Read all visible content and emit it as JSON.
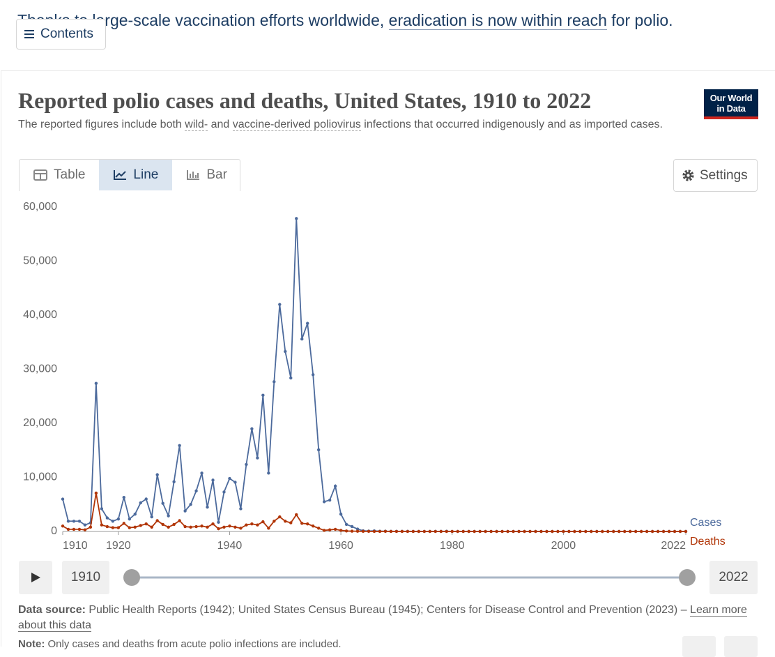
{
  "page": {
    "intro": {
      "text_before": "Thanks to large-scale vaccination efforts worldwide, ",
      "link": "eradication is now within reach",
      "text_after": " for polio."
    },
    "contents_button": "Contents",
    "logo": [
      "Our World",
      "in Data"
    ],
    "tabs": [
      "Table",
      "Line",
      "Bar"
    ],
    "settings_button": "Settings",
    "timeline": {
      "start": "1910",
      "end": "2022"
    },
    "source": {
      "label": "Data source:",
      "text": " Public Health Reports (1942); United States Census Bureau (1945); Centers for Disease Control and Prevention (2023) – ",
      "link": "Learn more about this data"
    },
    "note": {
      "label": "Note:",
      "text": " Only cases and deaths from acute polio infections are included."
    }
  },
  "chart_data": {
    "type": "line",
    "title": "Reported polio cases and deaths, United States, 1910 to 2022",
    "subtitle": [
      "The reported figures include both ",
      "wild-",
      " and ",
      "vaccine-derived poliovirus",
      " infections that occurred indigenously and as imported cases."
    ],
    "x": [
      1910,
      1911,
      1912,
      1913,
      1914,
      1915,
      1916,
      1917,
      1918,
      1919,
      1920,
      1921,
      1922,
      1923,
      1924,
      1925,
      1926,
      1927,
      1928,
      1929,
      1930,
      1931,
      1932,
      1933,
      1934,
      1935,
      1936,
      1937,
      1938,
      1939,
      1940,
      1941,
      1942,
      1943,
      1944,
      1945,
      1946,
      1947,
      1948,
      1949,
      1950,
      1951,
      1952,
      1953,
      1954,
      1955,
      1956,
      1957,
      1958,
      1959,
      1960,
      1961,
      1962,
      1963,
      1964,
      1965,
      1966,
      1967,
      1968,
      1969,
      1970,
      1971,
      1972,
      1973,
      1974,
      1975,
      1976,
      1977,
      1978,
      1979,
      1980,
      1981,
      1982,
      1983,
      1984,
      1985,
      1986,
      1987,
      1988,
      1989,
      1990,
      1991,
      1992,
      1993,
      1994,
      1995,
      1996,
      1997,
      1998,
      1999,
      2000,
      2001,
      2002,
      2003,
      2004,
      2005,
      2006,
      2007,
      2008,
      2009,
      2010,
      2011,
      2012,
      2013,
      2014,
      2015,
      2016,
      2017,
      2018,
      2019,
      2020,
      2021,
      2022
    ],
    "series": [
      {
        "name": "Cases",
        "color": "#4c6a9c",
        "values": [
          5983,
          1900,
          1900,
          1900,
          1200,
          1600,
          27400,
          4200,
          2500,
          1900,
          2300,
          6300,
          2300,
          3200,
          5300,
          6000,
          2700,
          10500,
          5200,
          2900,
          9200,
          15900,
          3800,
          5000,
          7500,
          10800,
          4500,
          9500,
          1700,
          7300,
          9800,
          9100,
          4200,
          12400,
          19000,
          13600,
          25200,
          10800,
          27700,
          42000,
          33300,
          28400,
          57900,
          35600,
          38500,
          29000,
          15100,
          5500,
          5800,
          8400,
          3200,
          1300,
          910,
          450,
          120,
          70,
          110,
          40,
          50,
          20,
          30,
          20,
          30,
          8,
          7,
          13,
          14,
          18,
          15,
          34,
          9,
          10,
          12,
          13,
          9,
          8,
          10,
          9,
          9,
          11,
          6,
          10,
          6,
          4,
          8,
          7,
          7,
          6,
          1,
          0,
          0,
          0,
          0,
          0,
          0,
          1,
          0,
          0,
          0,
          0,
          0,
          0,
          0,
          0,
          0,
          0,
          0,
          0,
          0,
          0,
          0,
          0,
          1
        ]
      },
      {
        "name": "Deaths",
        "color": "#b13507",
        "values": [
          1000,
          400,
          400,
          400,
          300,
          800,
          7100,
          1200,
          900,
          700,
          700,
          1500,
          700,
          800,
          1100,
          1400,
          800,
          2000,
          1300,
          800,
          1300,
          2000,
          900,
          800,
          900,
          1000,
          800,
          1400,
          500,
          800,
          1000,
          800,
          600,
          1200,
          1400,
          1200,
          1800,
          600,
          1900,
          2700,
          1900,
          1600,
          3100,
          1500,
          1400,
          1000,
          600,
          200,
          300,
          400,
          200,
          90,
          50,
          40,
          20,
          20,
          10,
          10,
          20,
          10,
          10,
          10,
          0,
          0,
          0,
          0,
          0,
          0,
          0,
          0,
          0,
          0,
          0,
          0,
          0,
          0,
          0,
          0,
          0,
          0,
          0,
          0,
          0,
          0,
          0,
          0,
          0,
          0,
          0,
          0,
          0,
          0,
          0,
          0,
          0,
          0,
          0,
          0,
          0,
          0,
          0,
          0,
          0,
          0,
          0,
          0,
          0,
          0,
          0,
          0,
          0,
          0,
          0
        ]
      }
    ],
    "xlim": [
      1910,
      2022
    ],
    "xticks": [
      1910,
      1920,
      1940,
      1960,
      1980,
      2000,
      2022
    ],
    "ylim": [
      0,
      60000
    ],
    "yticks": [
      0,
      {
        "value": 10000,
        "label": "10,000"
      },
      {
        "value": 20000,
        "label": "20,000"
      },
      {
        "value": 30000,
        "label": "30,000"
      },
      {
        "value": 40000,
        "label": "40,000"
      },
      {
        "value": 50000,
        "label": "50,000"
      },
      {
        "value": 60000,
        "label": "60,000"
      }
    ],
    "grid": true
  }
}
